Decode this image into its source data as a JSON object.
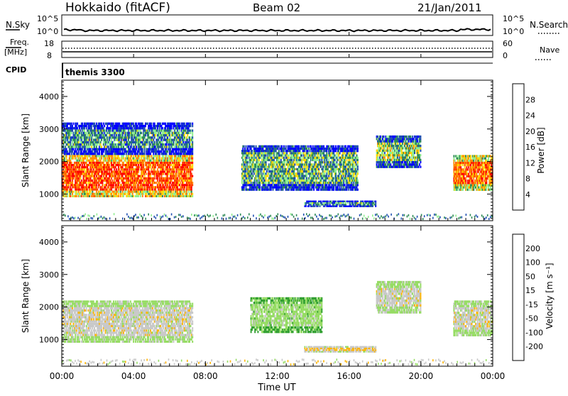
{
  "header": {
    "station": "Hokkaido (fitACF)",
    "beam": "Beam 02",
    "date": "21/Jan/2011"
  },
  "noise_panel": {
    "left_label": "N.Sky",
    "right_label": "N.Search",
    "left_ticks": [
      "10^5",
      "10^0"
    ],
    "right_ticks": [
      "10^5",
      "10^0"
    ]
  },
  "freq_panel": {
    "left_label_1": "Freq.",
    "left_label_2": "[MHz]",
    "right_label": "Nave",
    "left_ticks": [
      "18",
      "8"
    ],
    "right_ticks": [
      "60",
      "0"
    ]
  },
  "cpid_panel": {
    "label": "CPID",
    "program": "themis 3300"
  },
  "power_panel": {
    "ylabel": "Slant Range [km]",
    "yticks": [
      "4000",
      "3000",
      "2000",
      "1000"
    ],
    "colorbar_label": "Power [dB]",
    "colorbar_ticks": [
      "28",
      "24",
      "20",
      "16",
      "12",
      "8",
      "4"
    ],
    "colors": [
      "#0000ff",
      "#1f4fb0",
      "#2e8b57",
      "#90ee90",
      "#ffd700",
      "#ff8c00",
      "#ff4500",
      "#ff0000"
    ]
  },
  "velocity_panel": {
    "ylabel": "Slant Range [km]",
    "yticks": [
      "4000",
      "3000",
      "2000",
      "1000"
    ],
    "colorbar_label": "Velocity [m s⁻¹]",
    "colorbar_ticks": [
      "200",
      "100",
      "50",
      "15",
      "-15",
      "-50",
      "-100",
      "-200"
    ],
    "colors": [
      "#1e3cc8",
      "#3c78dc",
      "#32a032",
      "#96dc64",
      "#c8c8c8",
      "#ffb400",
      "#ff7800",
      "#ff2800",
      "#dc0000"
    ]
  },
  "xaxis": {
    "label": "Time UT",
    "ticks": [
      "00:00",
      "04:00",
      "08:00",
      "12:00",
      "16:00",
      "20:00",
      "00:00"
    ]
  },
  "chart_data": [
    {
      "type": "heatmap",
      "title": "Power [dB]",
      "xlabel": "Time UT",
      "ylabel": "Slant Range [km]",
      "xlim_hours": [
        0,
        24
      ],
      "ylim": [
        180,
        4500
      ],
      "color_range": [
        0,
        32
      ],
      "regions": [
        {
          "t0": 0.0,
          "t1": 7.3,
          "r0": 900,
          "r1": 2200,
          "value": 26
        },
        {
          "t0": 0.0,
          "t1": 7.3,
          "r0": 2200,
          "r1": 3200,
          "value": 10
        },
        {
          "t0": 10.0,
          "t1": 16.5,
          "r0": 1100,
          "r1": 2500,
          "value": 12
        },
        {
          "t0": 13.5,
          "t1": 17.5,
          "r0": 600,
          "r1": 800,
          "value": 10
        },
        {
          "t0": 17.5,
          "t1": 20.0,
          "r0": 1800,
          "r1": 2800,
          "value": 14
        },
        {
          "t0": 21.8,
          "t1": 24.0,
          "r0": 1100,
          "r1": 2200,
          "value": 24
        }
      ]
    },
    {
      "type": "heatmap",
      "title": "Velocity [m s⁻¹]",
      "xlabel": "Time UT",
      "ylabel": "Slant Range [km]",
      "xlim_hours": [
        0,
        24
      ],
      "ylim": [
        180,
        4500
      ],
      "color_range": [
        -200,
        200
      ],
      "regions": [
        {
          "t0": 0.0,
          "t1": 7.3,
          "r0": 900,
          "r1": 2200,
          "value": 0
        },
        {
          "t0": 10.5,
          "t1": 14.5,
          "r0": 1200,
          "r1": 2300,
          "value": -40
        },
        {
          "t0": 13.5,
          "t1": 17.5,
          "r0": 600,
          "r1": 800,
          "value": 30
        },
        {
          "t0": 17.5,
          "t1": 20.0,
          "r0": 1800,
          "r1": 2800,
          "value": 0
        },
        {
          "t0": 21.8,
          "t1": 24.0,
          "r0": 1100,
          "r1": 2200,
          "value": 0
        }
      ]
    }
  ]
}
